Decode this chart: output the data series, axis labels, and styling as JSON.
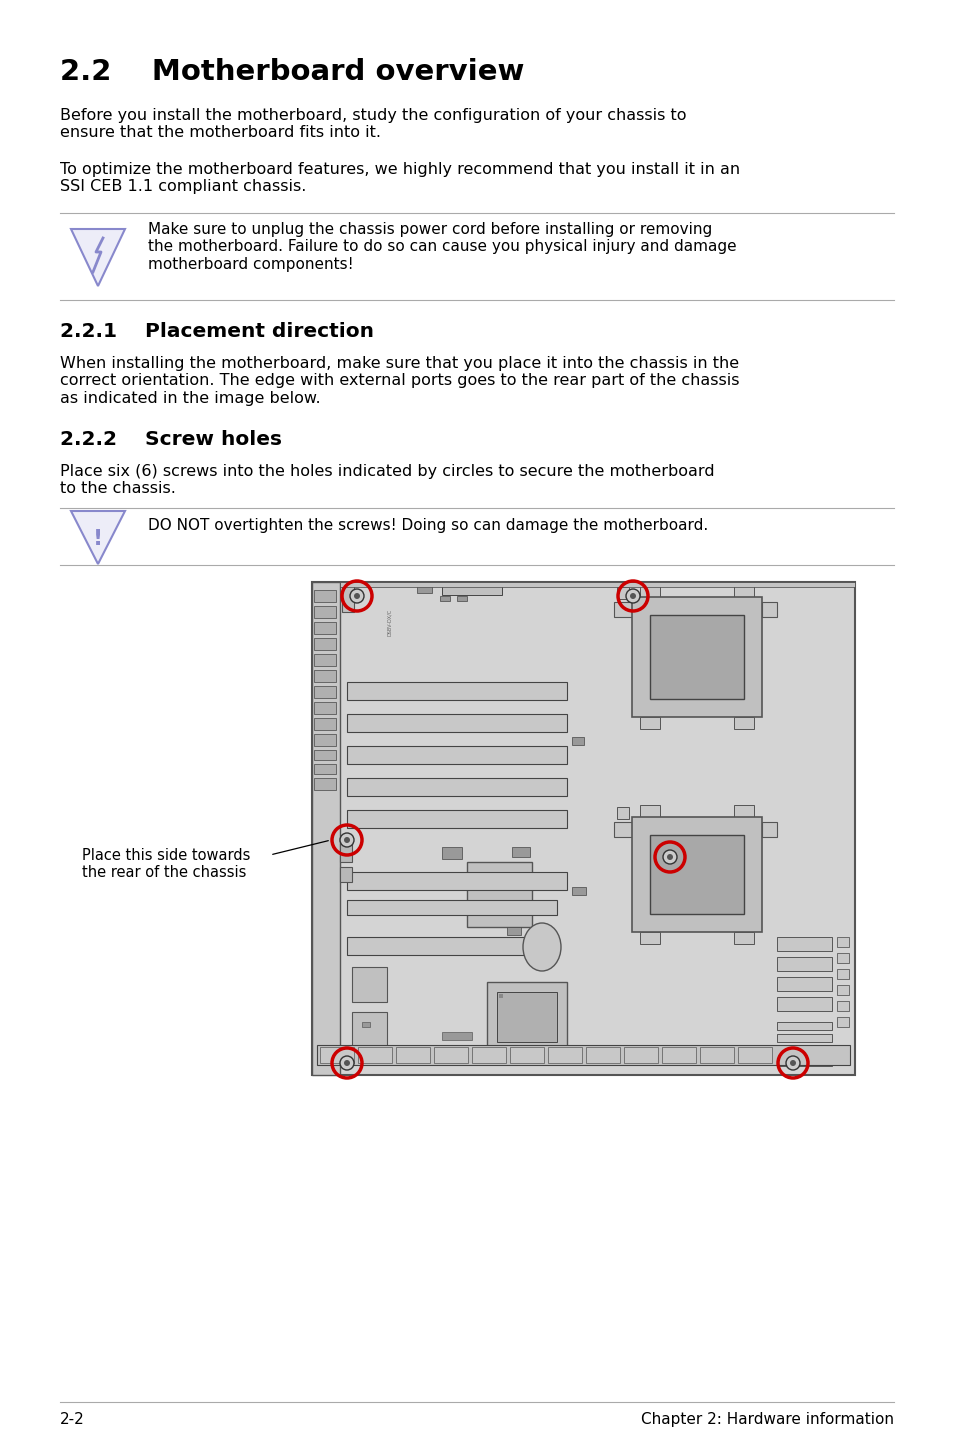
{
  "title": "2.2    Motherboard overview",
  "para1": "Before you install the motherboard, study the configuration of your chassis to\nensure that the motherboard fits into it.",
  "para2": "To optimize the motherboard features, we highly recommend that you install it in an\nSSI CEB 1.1 compliant chassis.",
  "warning1": "Make sure to unplug the chassis power cord before installing or removing\nthe motherboard. Failure to do so can cause you physical injury and damage\nmotherboard components!",
  "section221": "2.2.1    Placement direction",
  "para3": "When installing the motherboard, make sure that you place it into the chassis in the\ncorrect orientation. The edge with external ports goes to the rear part of the chassis\nas indicated in the image below.",
  "section222": "2.2.2    Screw holes",
  "para4": "Place six (6) screws into the holes indicated by circles to secure the motherboard\nto the chassis.",
  "warning2": "DO NOT overtighten the screws! Doing so can damage the motherboard.",
  "label1": "Place this side towards\nthe rear of the chassis",
  "footer_left": "2-2",
  "footer_right": "Chapter 2: Hardware information",
  "bg_color": "#ffffff",
  "text_color": "#000000",
  "board_color": "#d4d4d4",
  "board_edge": "#555555",
  "screw_circle_color": "#cc0000",
  "line_color": "#aaaaaa",
  "icon_color": "#8888cc",
  "icon_fill": "#ededf8"
}
